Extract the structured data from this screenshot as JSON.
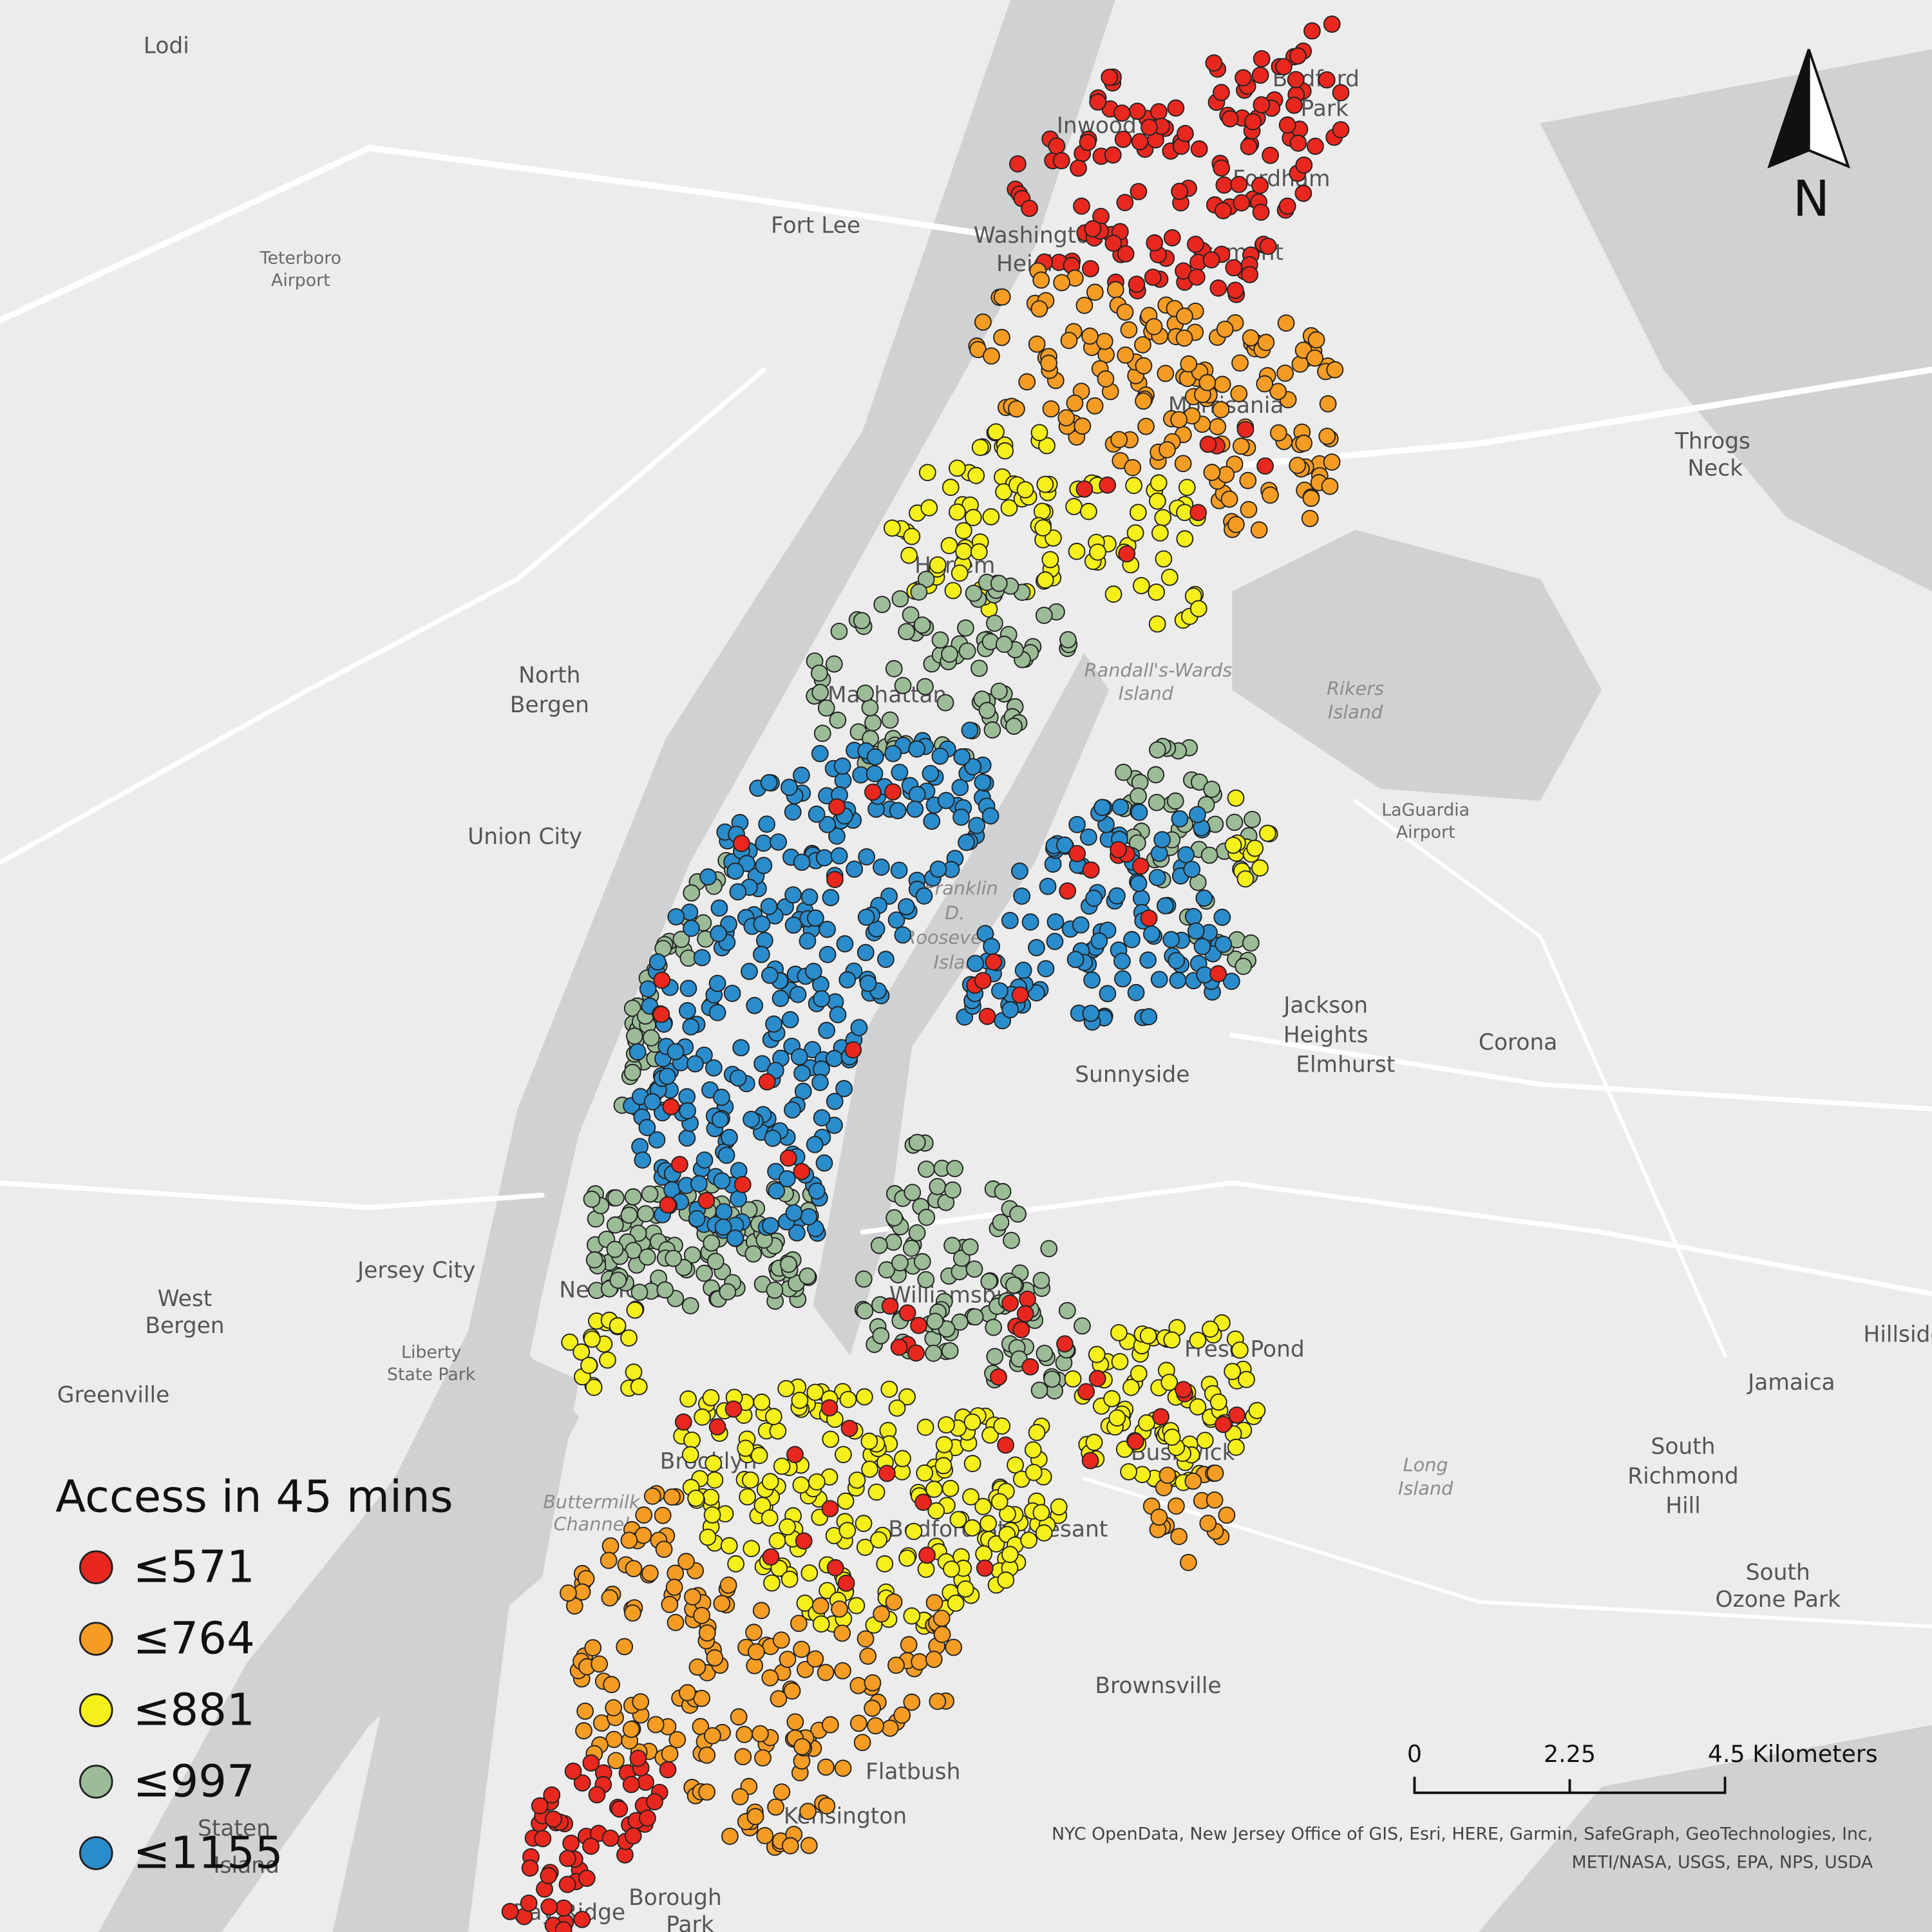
{
  "legend": {
    "title": "Access in 45 mins",
    "items": [
      {
        "label": "≤571",
        "color": "#e8281f"
      },
      {
        "label": "≤764",
        "color": "#f59c24"
      },
      {
        "label": "≤881",
        "color": "#f5f019"
      },
      {
        "label": "≤997",
        "color": "#9cbc98"
      },
      {
        "label": "≤1155",
        "color": "#2b8ccc"
      }
    ]
  },
  "north_arrow": "N",
  "scale_bar": [
    "0",
    "2.25",
    "4.5 Kilometers"
  ],
  "places": [
    "Lodi",
    "Fort Lee",
    "Teterboro",
    "Airport",
    "Inwood",
    "Washington",
    "Heights",
    "Bedford",
    "Park",
    "Fordham",
    "Tremont",
    "Morrisania",
    "Throgs",
    "Neck",
    "Harlem",
    "Manhattan",
    "Randall's-Wards",
    "Island",
    "Rikers",
    "Island",
    "LaGuardia",
    "Airport",
    "North",
    "Bergen",
    "Union City",
    "Franklin",
    "D.",
    "Roosevelt",
    "Island",
    "Jackson",
    "Heights",
    "Elmhurst",
    "Corona",
    "Sunnyside",
    "Jersey City",
    "West",
    "Bergen",
    "Liberty",
    "State Park",
    "Greenville",
    "New York",
    "Williamsburg",
    "Fresh Pond",
    "Bushwick",
    "Brooklyn",
    "Buttermilk",
    "Channel",
    "Bedford-Stuyvesant",
    "Long",
    "Island",
    "Brownsville",
    "Flatbush",
    "Kensington",
    "Borough",
    "Park",
    "Bay Ridge",
    "Staten",
    "Island",
    "Jamaica",
    "South",
    "Richmond",
    "Hill",
    "South",
    "Ozone Park",
    "Hillside"
  ],
  "attribution": [
    "NYC OpenData, New Jersey Office of GIS, Esri, HERE, Garmin, SafeGraph, GeoTechnologies, Inc,",
    "METI/NASA, USGS, EPA, NPS, USDA"
  ]
}
